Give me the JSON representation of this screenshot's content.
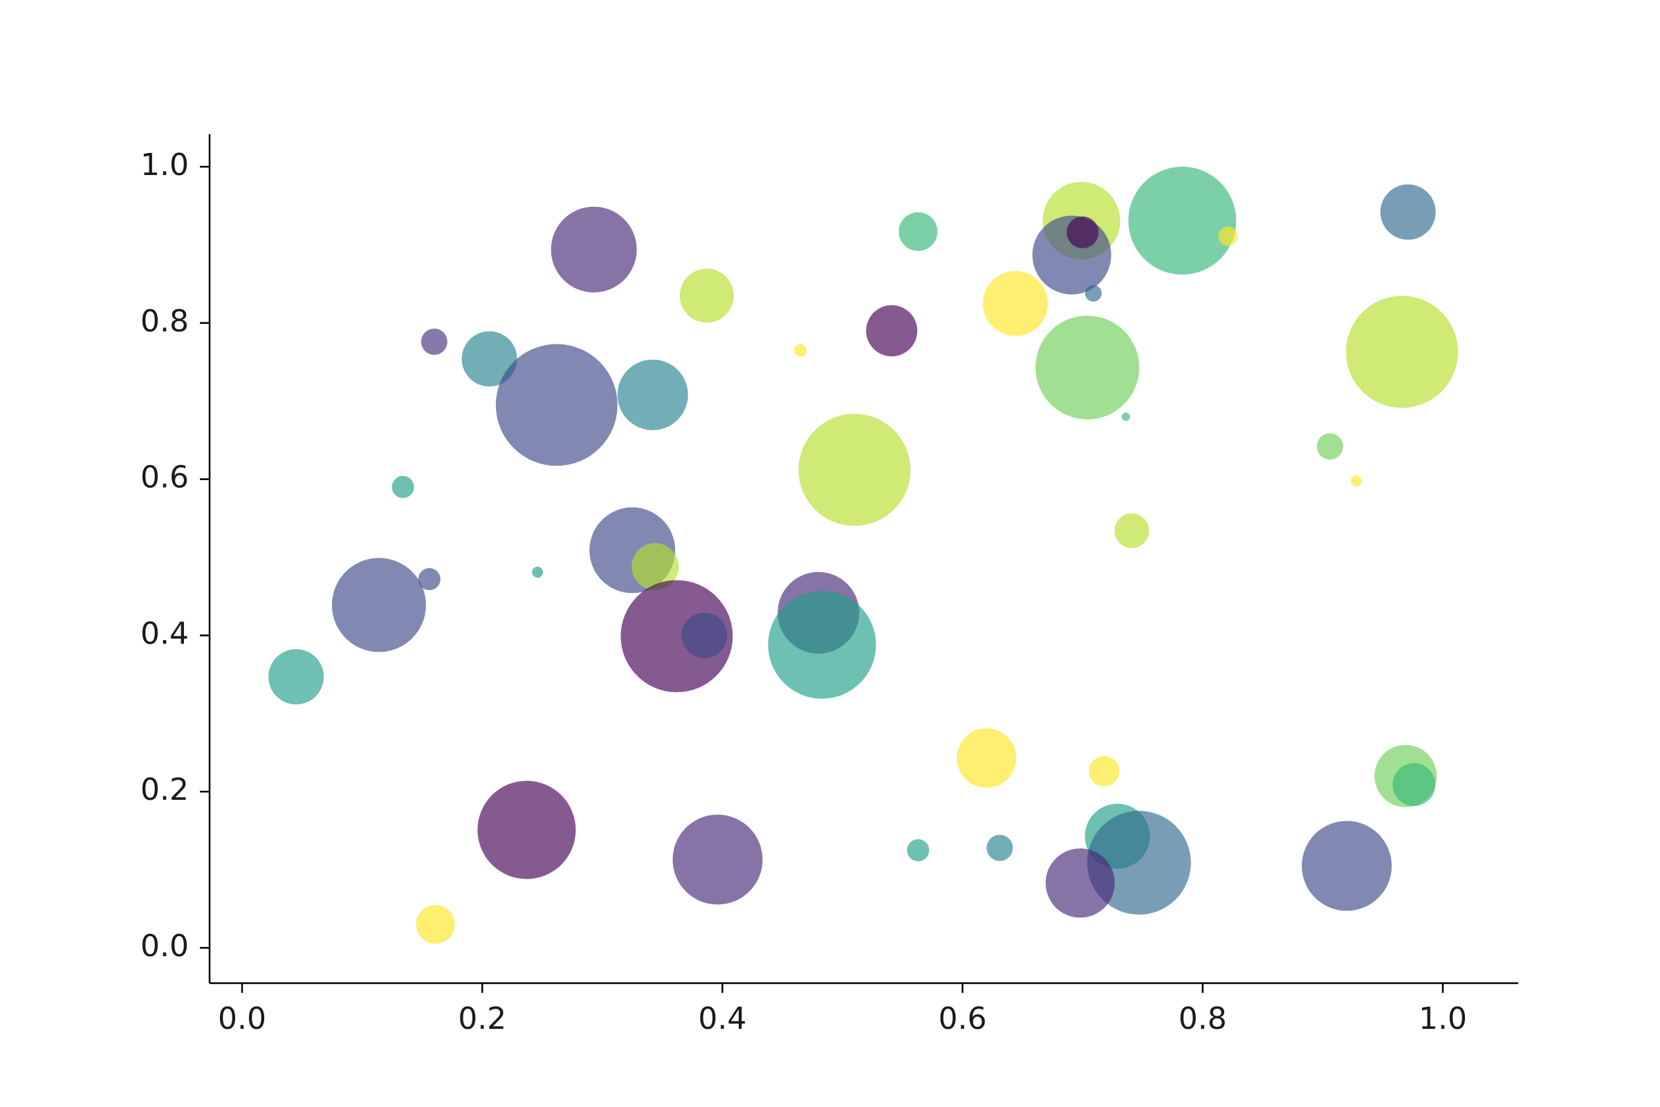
{
  "chart_data": {
    "type": "scatter",
    "title": "",
    "subtitle": "",
    "xlabel": "",
    "ylabel": "",
    "xlim": [
      -0.05,
      1.05
    ],
    "ylim": [
      -0.05,
      1.05
    ],
    "grid": false,
    "legend": "none",
    "background": "#ffffff",
    "point_opacity": 0.65,
    "axis": {
      "spine_color": "#000000",
      "text_color": "#1a1a1a",
      "spines_visible": [
        "left",
        "bottom"
      ]
    },
    "xticks": [
      {
        "value": 0.0,
        "label": "0.0"
      },
      {
        "value": 0.2,
        "label": "0.2"
      },
      {
        "value": 0.4,
        "label": "0.4"
      },
      {
        "value": 0.6,
        "label": "0.6"
      },
      {
        "value": 0.8,
        "label": "0.8"
      },
      {
        "value": 1.0,
        "label": "1.0"
      }
    ],
    "yticks": [
      {
        "value": 0.0,
        "label": "0.0"
      },
      {
        "value": 0.2,
        "label": "0.2"
      },
      {
        "value": 0.4,
        "label": "0.4"
      },
      {
        "value": 0.6,
        "label": "0.6"
      },
      {
        "value": 0.8,
        "label": "0.8"
      },
      {
        "value": 1.0,
        "label": "1.0"
      }
    ],
    "points": [
      {
        "x": 0.293,
        "y": 0.894,
        "r": 62,
        "color": "#482878"
      },
      {
        "x": 0.387,
        "y": 0.835,
        "r": 39,
        "color": "#b5de2b"
      },
      {
        "x": 0.16,
        "y": 0.776,
        "r": 19,
        "color": "#46327e"
      },
      {
        "x": 0.206,
        "y": 0.754,
        "r": 40,
        "color": "#26828e"
      },
      {
        "x": 0.262,
        "y": 0.695,
        "r": 88,
        "color": "#3e4989"
      },
      {
        "x": 0.342,
        "y": 0.708,
        "r": 51,
        "color": "#26828e"
      },
      {
        "x": 0.465,
        "y": 0.765,
        "r": 9,
        "color": "#fde725"
      },
      {
        "x": 0.541,
        "y": 0.79,
        "r": 37,
        "color": "#440154"
      },
      {
        "x": 0.563,
        "y": 0.917,
        "r": 28,
        "color": "#35b779"
      },
      {
        "x": 0.699,
        "y": 0.931,
        "r": 56,
        "color": "#b5de2b"
      },
      {
        "x": 0.691,
        "y": 0.887,
        "r": 57,
        "color": "#3e4989"
      },
      {
        "x": 0.7,
        "y": 0.916,
        "r": 23,
        "color": "#440154"
      },
      {
        "x": 0.709,
        "y": 0.838,
        "r": 12,
        "color": "#31688e"
      },
      {
        "x": 0.644,
        "y": 0.825,
        "r": 47,
        "color": "#fde725"
      },
      {
        "x": 0.783,
        "y": 0.931,
        "r": 78,
        "color": "#35b779"
      },
      {
        "x": 0.821,
        "y": 0.911,
        "r": 14,
        "color": "#fde725"
      },
      {
        "x": 0.704,
        "y": 0.743,
        "r": 75,
        "color": "#6ece58"
      },
      {
        "x": 0.736,
        "y": 0.68,
        "r": 6,
        "color": "#35b779"
      },
      {
        "x": 0.971,
        "y": 0.942,
        "r": 40,
        "color": "#31688e"
      },
      {
        "x": 0.966,
        "y": 0.763,
        "r": 81,
        "color": "#b5de2b"
      },
      {
        "x": 0.906,
        "y": 0.642,
        "r": 19,
        "color": "#6ece58"
      },
      {
        "x": 0.928,
        "y": 0.598,
        "r": 8,
        "color": "#fde725"
      },
      {
        "x": 0.741,
        "y": 0.534,
        "r": 25,
        "color": "#b5de2b"
      },
      {
        "x": 0.51,
        "y": 0.612,
        "r": 81,
        "color": "#b5de2b"
      },
      {
        "x": 0.134,
        "y": 0.59,
        "r": 16,
        "color": "#1f9e89"
      },
      {
        "x": 0.156,
        "y": 0.472,
        "r": 16,
        "color": "#3e4989"
      },
      {
        "x": 0.114,
        "y": 0.439,
        "r": 68,
        "color": "#3e4989"
      },
      {
        "x": 0.246,
        "y": 0.481,
        "r": 8,
        "color": "#1f9e89"
      },
      {
        "x": 0.325,
        "y": 0.509,
        "r": 62,
        "color": "#3e4989"
      },
      {
        "x": 0.344,
        "y": 0.488,
        "r": 34,
        "color": "#b5de2b"
      },
      {
        "x": 0.362,
        "y": 0.399,
        "r": 81,
        "color": "#440154"
      },
      {
        "x": 0.385,
        "y": 0.4,
        "r": 33,
        "color": "#3e4989"
      },
      {
        "x": 0.48,
        "y": 0.429,
        "r": 59,
        "color": "#482878"
      },
      {
        "x": 0.483,
        "y": 0.388,
        "r": 78,
        "color": "#1f9e89"
      },
      {
        "x": 0.045,
        "y": 0.347,
        "r": 40,
        "color": "#1f9e89"
      },
      {
        "x": 0.62,
        "y": 0.243,
        "r": 43,
        "color": "#fde725"
      },
      {
        "x": 0.718,
        "y": 0.226,
        "r": 22,
        "color": "#fde725"
      },
      {
        "x": 0.563,
        "y": 0.125,
        "r": 16,
        "color": "#1f9e89"
      },
      {
        "x": 0.631,
        "y": 0.128,
        "r": 19,
        "color": "#26828e"
      },
      {
        "x": 0.729,
        "y": 0.143,
        "r": 47,
        "color": "#1f9e89"
      },
      {
        "x": 0.747,
        "y": 0.109,
        "r": 75,
        "color": "#31688e"
      },
      {
        "x": 0.698,
        "y": 0.083,
        "r": 50,
        "color": "#482878"
      },
      {
        "x": 0.237,
        "y": 0.151,
        "r": 71,
        "color": "#440154"
      },
      {
        "x": 0.396,
        "y": 0.113,
        "r": 65,
        "color": "#482878"
      },
      {
        "x": 0.161,
        "y": 0.03,
        "r": 28,
        "color": "#fde725"
      },
      {
        "x": 0.92,
        "y": 0.105,
        "r": 65,
        "color": "#3e4989"
      },
      {
        "x": 0.969,
        "y": 0.22,
        "r": 45,
        "color": "#6ece58"
      },
      {
        "x": 0.976,
        "y": 0.209,
        "r": 31,
        "color": "#35b779"
      }
    ]
  }
}
